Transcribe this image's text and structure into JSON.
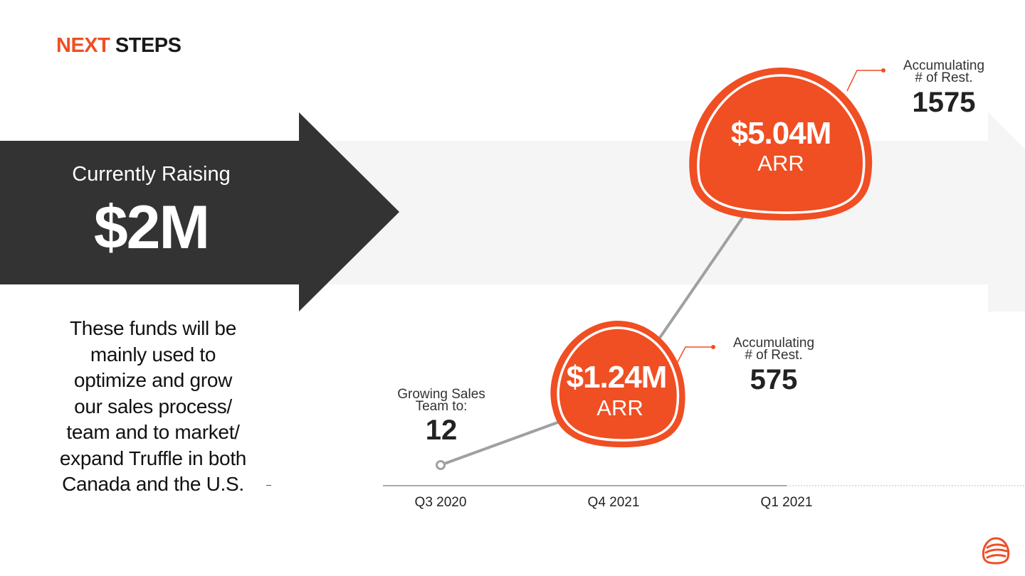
{
  "header": {
    "word1": "NEXT",
    "word2": "STEPS"
  },
  "raising": {
    "label": "Currently Raising",
    "amount": "$2M"
  },
  "funds_text": [
    "These funds will be",
    "mainly used to",
    "optimize and grow",
    "our sales process/",
    "team and to market/",
    "expand Truffle in both",
    "Canada and the U.S."
  ],
  "colors": {
    "accent": "#F04E23",
    "dark": "#333333",
    "band": "#F5F5F5",
    "line": "#A0A0A0"
  },
  "chart_data": {
    "type": "line",
    "categories": [
      "Q3 2020",
      "Q4 2021",
      "Q1 2021"
    ],
    "points": [
      {
        "category": "Q3 2020",
        "annotation_label": [
          "Growing Sales",
          "Team to:"
        ],
        "annotation_value": "12"
      },
      {
        "category": "Q4 2021",
        "value": "$1.24M",
        "unit": "ARR",
        "annotation_label": [
          "Accumulating",
          "# of Rest."
        ],
        "annotation_value": "575"
      },
      {
        "category": "Q1 2021",
        "value": "$5.04M",
        "unit": "ARR",
        "annotation_label": [
          "Accumulating",
          "# of Rest."
        ],
        "annotation_value": "1575"
      }
    ]
  },
  "logo": {
    "icon": "truffle-logo-icon"
  }
}
